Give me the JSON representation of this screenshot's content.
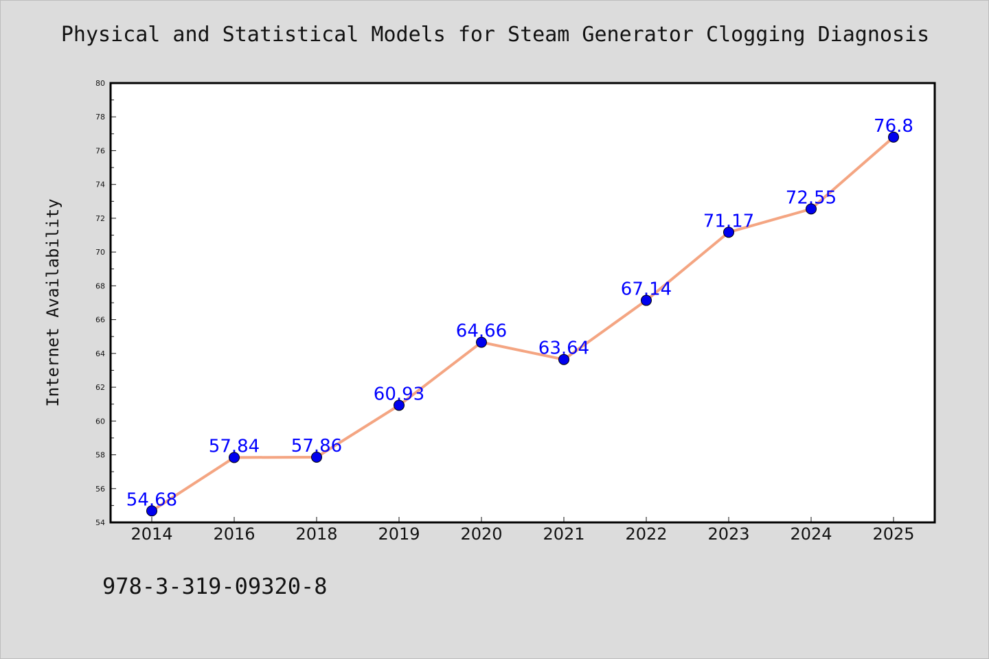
{
  "chart_data": {
    "type": "line",
    "title": "Physical and Statistical Models for Steam Generator Clogging Diagnosis",
    "xlabel": "",
    "ylabel": "Internet Availability",
    "categories": [
      "2014",
      "2016",
      "2018",
      "2019",
      "2020",
      "2021",
      "2022",
      "2023",
      "2024",
      "2025"
    ],
    "series": [
      {
        "values": [
          54.68,
          57.84,
          57.86,
          60.93,
          64.66,
          63.64,
          67.14,
          71.17,
          72.55,
          76.8
        ],
        "labels": [
          "54.68",
          "57.84",
          "57.86",
          "60.93",
          "64.66",
          "63.64",
          "67.14",
          "71.17",
          "72.55",
          "76.8"
        ]
      }
    ],
    "ylim": [
      54,
      80
    ],
    "yticks": [
      54,
      56,
      58,
      60,
      62,
      64,
      66,
      68,
      70,
      72,
      74,
      76,
      78,
      80
    ],
    "grid": false,
    "legend": "none",
    "colors": {
      "line": "#f4a582",
      "marker": "#0000ee",
      "data_label": "#0000ff",
      "background": "#dcdcdc",
      "plot_area": "#ffffff"
    }
  },
  "footer": {
    "text": "978-3-319-09320-8"
  }
}
